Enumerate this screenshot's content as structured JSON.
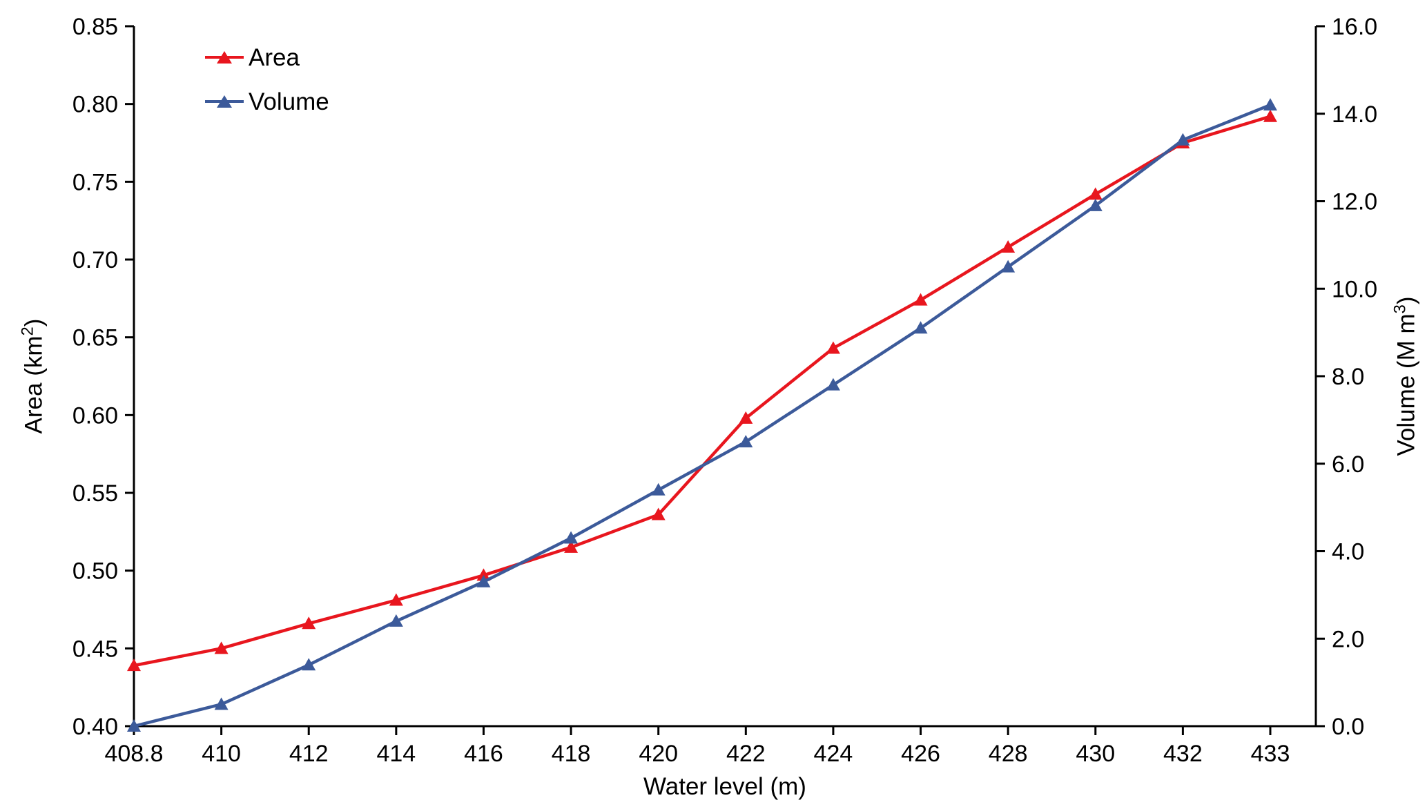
{
  "axes": {
    "x_title": "Water level (m)",
    "y_left_title_base": "Area (km",
    "y_left_title_sup": "2",
    "y_left_title_end": ")",
    "y_right_title_base": "Volume (M m",
    "y_right_title_sup": "3",
    "y_right_title_end": ")"
  },
  "colors": {
    "axis": "#000000",
    "background": "#ffffff",
    "area_series": "#e8161e",
    "volume_series": "#3c5a9a"
  },
  "chart_data": {
    "type": "line",
    "title": "",
    "xlabel": "Water level (m)",
    "ylabel_left": "Area (km²)",
    "ylabel_right": "Volume (M m³)",
    "categories": [
      "408.8",
      "410",
      "412",
      "414",
      "416",
      "418",
      "420",
      "422",
      "424",
      "426",
      "428",
      "430",
      "432",
      "433"
    ],
    "series": [
      {
        "name": "Area",
        "axis": "left",
        "color": "#e8161e",
        "marker": "triangle-up",
        "values": [
          0.439,
          0.45,
          0.466,
          0.481,
          0.497,
          0.515,
          0.536,
          0.598,
          0.643,
          0.674,
          0.708,
          0.742,
          0.775,
          0.792
        ]
      },
      {
        "name": "Volume",
        "axis": "right",
        "color": "#3c5a9a",
        "marker": "triangle-up",
        "values": [
          0.0,
          0.5,
          1.4,
          2.4,
          3.3,
          4.3,
          5.4,
          6.5,
          7.8,
          9.1,
          10.5,
          11.9,
          13.4,
          14.2
        ]
      }
    ],
    "ylim_left": [
      0.4,
      0.85
    ],
    "ylim_right": [
      0.0,
      16.0
    ],
    "y_left_ticks": [
      "0.40",
      "0.45",
      "0.50",
      "0.55",
      "0.60",
      "0.65",
      "0.70",
      "0.75",
      "0.80",
      "0.85"
    ],
    "y_right_ticks": [
      "0.0",
      "2.0",
      "4.0",
      "6.0",
      "8.0",
      "10.0",
      "12.0",
      "14.0",
      "16.0"
    ],
    "grid": false,
    "legend": [
      "Area",
      "Volume"
    ],
    "legend_position": "top-left"
  }
}
